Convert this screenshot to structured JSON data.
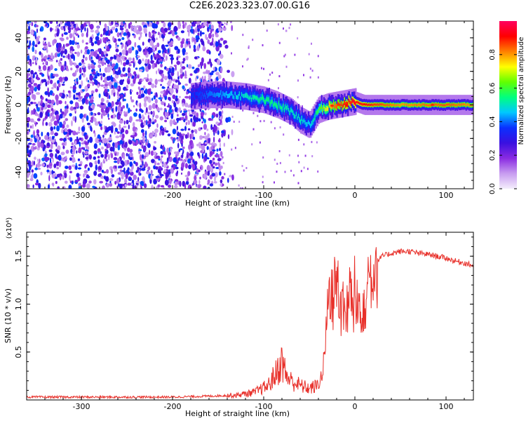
{
  "title": "C2E6.2023.323.07.00.G16",
  "chart_data": [
    {
      "type": "heatmap",
      "name": "spectrogram",
      "xlabel": "Height of straight line (km)",
      "ylabel": "Frequency (Hz)",
      "xlim": [
        -360,
        130
      ],
      "ylim": [
        -50,
        50
      ],
      "xticks": [
        -300,
        -200,
        -100,
        0,
        100
      ],
      "yticks": [
        -40,
        -20,
        0,
        20,
        40
      ],
      "colorbar": {
        "label": "Normalized spectral amplitude",
        "range": [
          0,
          1
        ],
        "ticks": [
          0.0,
          0.2,
          0.4,
          0.6,
          0.8
        ],
        "tick_labels": [
          "0.0",
          "0.2",
          "0.4",
          "0.6",
          "0.8"
        ],
        "colors": [
          "#f4eefc",
          "#c89cf0",
          "#8a2be2",
          "#3a10e0",
          "#0a30ff",
          "#00c8ff",
          "#00ff80",
          "#60ff00",
          "#ffff00",
          "#ff8000",
          "#ff0000",
          "#ff0060"
        ]
      },
      "noise_region_x": [
        -360,
        -145
      ],
      "signal_trace": {
        "x": [
          -180,
          -160,
          -140,
          -120,
          -100,
          -85,
          -70,
          -60,
          -50,
          -40,
          -30,
          -20,
          -10,
          0,
          10,
          50,
          100,
          130
        ],
        "y": [
          5,
          6,
          6,
          5,
          3,
          0,
          -4,
          -9,
          -12,
          -3,
          -1,
          0,
          1,
          2,
          0,
          0,
          0,
          0
        ],
        "peak_amplitude": [
          0.35,
          0.4,
          0.45,
          0.5,
          0.55,
          0.55,
          0.5,
          0.5,
          0.45,
          0.6,
          0.75,
          0.85,
          0.9,
          0.95,
          0.9,
          0.8,
          0.85,
          0.8
        ]
      }
    },
    {
      "type": "line",
      "name": "snr",
      "xlabel": "Height of straight line (km)",
      "ylabel": "SNR (10 * v/v)",
      "yscale_note": "(x10⁴)",
      "xlim": [
        -360,
        130
      ],
      "ylim": [
        0,
        1.75
      ],
      "xticks": [
        -300,
        -200,
        -100,
        0,
        100
      ],
      "yticks": [
        0.5,
        1.0,
        1.5
      ],
      "ytick_labels": [
        "0.5",
        "1.0",
        "1.5"
      ],
      "color": "#e8302a",
      "series": [
        {
          "x": [
            -360,
            -300,
            -250,
            -200,
            -160,
            -130,
            -110,
            -95,
            -85,
            -80,
            -75,
            -70,
            -60,
            -50,
            -40,
            -35,
            -30,
            -28,
            -25,
            -20,
            -15,
            -10,
            -5,
            0,
            5,
            10,
            15,
            20,
            25,
            30,
            40,
            50,
            60,
            70,
            80,
            90,
            100,
            110,
            120,
            130
          ],
          "y": [
            0.03,
            0.03,
            0.03,
            0.03,
            0.04,
            0.05,
            0.08,
            0.15,
            0.3,
            0.4,
            0.25,
            0.2,
            0.15,
            0.12,
            0.15,
            0.3,
            0.9,
            1.2,
            1.0,
            1.3,
            0.95,
            0.9,
            1.1,
            0.9,
            1.0,
            1.05,
            1.2,
            1.4,
            1.45,
            1.5,
            1.53,
            1.55,
            1.55,
            1.53,
            1.52,
            1.5,
            1.48,
            1.45,
            1.43,
            1.4
          ]
        }
      ]
    }
  ]
}
